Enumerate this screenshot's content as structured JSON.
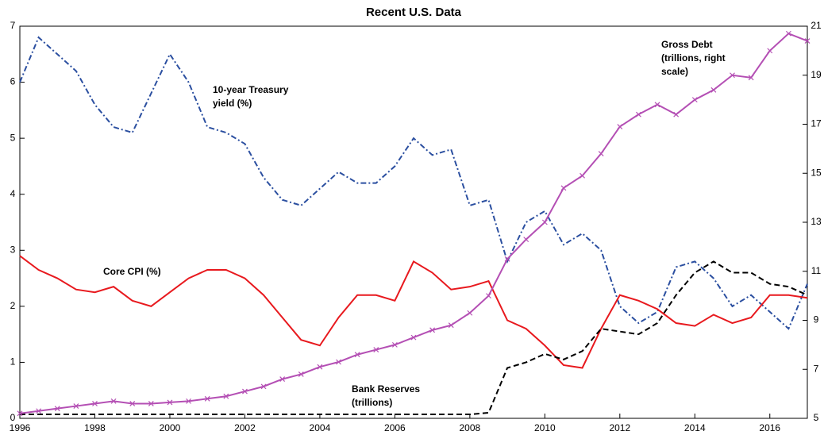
{
  "chart_data": {
    "type": "line",
    "title": "Recent U.S. Data",
    "x": [
      1996,
      1996.5,
      1997,
      1997.5,
      1998,
      1998.5,
      1999,
      1999.5,
      2000,
      2000.5,
      2001,
      2001.5,
      2002,
      2002.5,
      2003,
      2003.5,
      2004,
      2004.5,
      2005,
      2005.5,
      2006,
      2006.5,
      2007,
      2007.5,
      2008,
      2008.5,
      2009,
      2009.5,
      2010,
      2010.5,
      2011,
      2011.5,
      2012,
      2012.5,
      2013,
      2013.5,
      2014,
      2014.5,
      2015,
      2015.5,
      2016,
      2016.5,
      2017
    ],
    "xlim": [
      1996,
      2017
    ],
    "xticks": [
      1996,
      1998,
      2000,
      2002,
      2004,
      2006,
      2008,
      2010,
      2012,
      2014,
      2016
    ],
    "ylim": [
      0,
      7
    ],
    "yticks": [
      0,
      1,
      2,
      3,
      4,
      5,
      6,
      7
    ],
    "y2lim": [
      5,
      21
    ],
    "y2ticks": [
      5,
      7,
      9,
      11,
      13,
      15,
      17,
      19,
      21
    ],
    "series": [
      {
        "name": "10-year Treasury yield (%)",
        "color": "#2b4fa0",
        "dash": "dashdot",
        "values": [
          6.0,
          6.8,
          6.5,
          6.2,
          5.6,
          5.2,
          5.1,
          5.8,
          6.5,
          6.0,
          5.2,
          5.1,
          4.9,
          4.3,
          3.9,
          3.8,
          4.1,
          4.4,
          4.2,
          4.2,
          4.5,
          5.0,
          4.7,
          4.8,
          3.8,
          3.9,
          2.8,
          3.5,
          3.7,
          3.1,
          3.3,
          3.0,
          2.0,
          1.7,
          1.9,
          2.7,
          2.8,
          2.5,
          2.0,
          2.2,
          1.9,
          1.6,
          2.4
        ]
      },
      {
        "name": "Core CPI (%)",
        "color": "#e8191e",
        "dash": "solid",
        "values": [
          2.9,
          2.65,
          2.5,
          2.3,
          2.25,
          2.35,
          2.1,
          2.0,
          2.25,
          2.5,
          2.65,
          2.65,
          2.5,
          2.2,
          1.8,
          1.4,
          1.3,
          1.8,
          2.2,
          2.2,
          2.1,
          2.8,
          2.6,
          2.3,
          2.35,
          2.45,
          1.75,
          1.6,
          1.3,
          0.95,
          0.9,
          1.6,
          2.2,
          2.1,
          1.95,
          1.7,
          1.65,
          1.85,
          1.7,
          1.8,
          2.2,
          2.2,
          2.15
        ]
      },
      {
        "name": "Bank Reserves (trillions)",
        "color": "#000000",
        "dash": "dashed",
        "values": [
          0.07,
          0.07,
          0.07,
          0.07,
          0.07,
          0.07,
          0.07,
          0.07,
          0.07,
          0.07,
          0.07,
          0.07,
          0.07,
          0.07,
          0.07,
          0.07,
          0.07,
          0.07,
          0.07,
          0.07,
          0.07,
          0.07,
          0.07,
          0.07,
          0.07,
          0.1,
          0.9,
          1.0,
          1.15,
          1.05,
          1.2,
          1.6,
          1.55,
          1.5,
          1.7,
          2.2,
          2.6,
          2.8,
          2.6,
          2.6,
          2.4,
          2.35,
          2.2
        ]
      },
      {
        "name": "Gross Debt (trillions, right scale)",
        "color": "#b44fb4",
        "dash": "solid",
        "marker": "x",
        "axis": "y2",
        "values": [
          5.2,
          5.3,
          5.4,
          5.5,
          5.6,
          5.7,
          5.6,
          5.6,
          5.65,
          5.7,
          5.8,
          5.9,
          6.1,
          6.3,
          6.6,
          6.8,
          7.1,
          7.3,
          7.6,
          7.8,
          8.0,
          8.3,
          8.6,
          8.8,
          9.3,
          10.0,
          11.5,
          12.3,
          13.0,
          14.4,
          14.9,
          15.8,
          16.9,
          17.4,
          17.8,
          17.4,
          18.0,
          18.4,
          19.0,
          18.9,
          20.0,
          20.7,
          20.4
        ]
      }
    ],
    "annotations": [
      {
        "lines": [
          "10-year Treasury",
          "yield (%)"
        ]
      },
      {
        "lines": [
          "Core CPI (%)"
        ]
      },
      {
        "lines": [
          "Bank Reserves",
          "(trillions)"
        ]
      },
      {
        "lines": [
          "Gross Debt",
          "(trillions, right",
          "scale)"
        ]
      }
    ]
  }
}
